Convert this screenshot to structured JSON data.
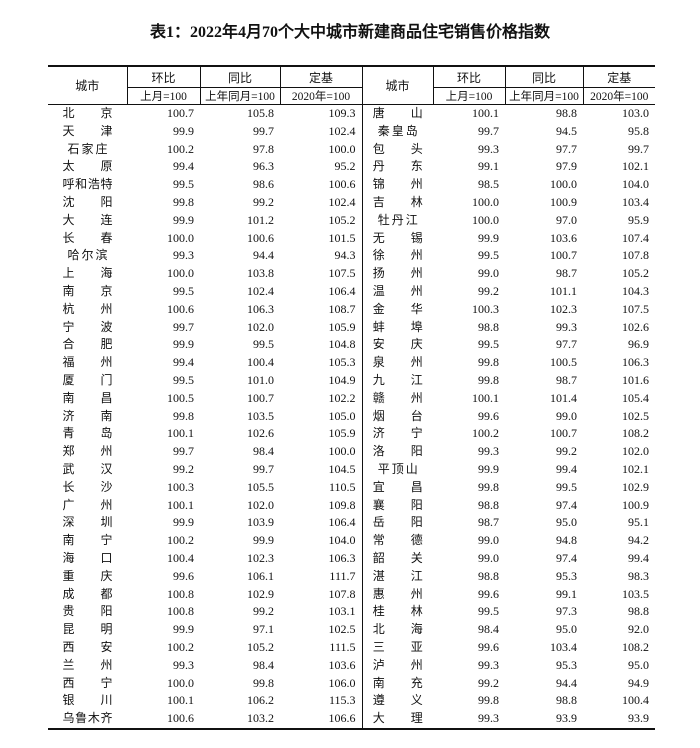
{
  "title": "表1：2022年4月70个大中城市新建商品住宅销售价格指数",
  "table": {
    "header": [
      "城市",
      "环比",
      "同比",
      "定基",
      "城市",
      "环比",
      "同比",
      "定基"
    ],
    "subheader": [
      "上月=100",
      "上年同月=100",
      "2020年=100",
      "上月=100",
      "上年同月=100",
      "2020年=100"
    ],
    "rows": [
      [
        "北京",
        "100.7",
        "105.8",
        "109.3",
        "唐山",
        "100.1",
        "98.8",
        "103.0"
      ],
      [
        "天津",
        "99.9",
        "99.7",
        "102.4",
        "秦皇岛",
        "99.7",
        "94.5",
        "95.8"
      ],
      [
        "石家庄",
        "100.2",
        "97.8",
        "100.0",
        "包头",
        "99.3",
        "97.7",
        "99.7"
      ],
      [
        "太原",
        "99.4",
        "96.3",
        "95.2",
        "丹东",
        "99.1",
        "97.9",
        "102.1"
      ],
      [
        "呼和浩特",
        "99.5",
        "98.6",
        "100.6",
        "锦州",
        "98.5",
        "100.0",
        "104.0"
      ],
      [
        "沈阳",
        "99.8",
        "99.2",
        "102.4",
        "吉林",
        "100.0",
        "100.9",
        "103.4"
      ],
      [
        "大连",
        "99.9",
        "101.2",
        "105.2",
        "牡丹江",
        "100.0",
        "97.0",
        "95.9"
      ],
      [
        "长春",
        "100.0",
        "100.6",
        "101.5",
        "无锡",
        "99.9",
        "103.6",
        "107.4"
      ],
      [
        "哈尔滨",
        "99.3",
        "94.4",
        "94.3",
        "徐州",
        "99.5",
        "100.7",
        "107.8"
      ],
      [
        "上海",
        "100.0",
        "103.8",
        "107.5",
        "扬州",
        "99.0",
        "98.7",
        "105.2"
      ],
      [
        "南京",
        "99.5",
        "102.4",
        "106.4",
        "温州",
        "99.2",
        "101.1",
        "104.3"
      ],
      [
        "杭州",
        "100.6",
        "106.3",
        "108.7",
        "金华",
        "100.3",
        "102.3",
        "107.5"
      ],
      [
        "宁波",
        "99.7",
        "102.0",
        "105.9",
        "蚌埠",
        "98.8",
        "99.3",
        "102.6"
      ],
      [
        "合肥",
        "99.9",
        "99.5",
        "104.8",
        "安庆",
        "99.5",
        "97.7",
        "96.9"
      ],
      [
        "福州",
        "99.4",
        "100.4",
        "105.3",
        "泉州",
        "99.8",
        "100.5",
        "106.3"
      ],
      [
        "厦门",
        "99.5",
        "101.0",
        "104.9",
        "九江",
        "99.8",
        "98.7",
        "101.6"
      ],
      [
        "南昌",
        "100.5",
        "100.7",
        "102.2",
        "赣州",
        "100.1",
        "101.4",
        "105.4"
      ],
      [
        "济南",
        "99.8",
        "103.5",
        "105.0",
        "烟台",
        "99.6",
        "99.0",
        "102.5"
      ],
      [
        "青岛",
        "100.1",
        "102.6",
        "105.9",
        "济宁",
        "100.2",
        "100.7",
        "108.2"
      ],
      [
        "郑州",
        "99.7",
        "98.4",
        "100.0",
        "洛阳",
        "99.3",
        "99.2",
        "102.0"
      ],
      [
        "武汉",
        "99.2",
        "99.7",
        "104.5",
        "平顶山",
        "99.9",
        "99.4",
        "102.1"
      ],
      [
        "长沙",
        "100.3",
        "105.5",
        "110.5",
        "宜昌",
        "99.8",
        "99.5",
        "102.9"
      ],
      [
        "广州",
        "100.1",
        "102.0",
        "109.8",
        "襄阳",
        "98.8",
        "97.4",
        "100.9"
      ],
      [
        "深圳",
        "99.9",
        "103.9",
        "106.4",
        "岳阳",
        "98.7",
        "95.0",
        "95.1"
      ],
      [
        "南宁",
        "100.2",
        "99.9",
        "104.0",
        "常德",
        "99.0",
        "94.8",
        "94.2"
      ],
      [
        "海口",
        "100.4",
        "102.3",
        "106.3",
        "韶关",
        "99.0",
        "97.4",
        "99.4"
      ],
      [
        "重庆",
        "99.6",
        "106.1",
        "111.7",
        "湛江",
        "98.8",
        "95.3",
        "98.3"
      ],
      [
        "成都",
        "100.8",
        "102.9",
        "107.8",
        "惠州",
        "99.6",
        "99.1",
        "103.5"
      ],
      [
        "贵阳",
        "100.8",
        "99.2",
        "103.1",
        "桂林",
        "99.5",
        "97.3",
        "98.8"
      ],
      [
        "昆明",
        "99.9",
        "97.1",
        "102.5",
        "北海",
        "98.4",
        "95.0",
        "92.0"
      ],
      [
        "西安",
        "100.2",
        "105.2",
        "111.5",
        "三亚",
        "99.6",
        "103.4",
        "108.2"
      ],
      [
        "兰州",
        "99.3",
        "98.4",
        "103.6",
        "泸州",
        "99.3",
        "95.3",
        "95.0"
      ],
      [
        "西宁",
        "100.0",
        "99.8",
        "106.0",
        "南充",
        "99.2",
        "94.4",
        "94.9"
      ],
      [
        "银川",
        "100.1",
        "106.2",
        "115.3",
        "遵义",
        "99.8",
        "98.8",
        "100.4"
      ],
      [
        "乌鲁木齐",
        "100.6",
        "103.2",
        "106.6",
        "大理",
        "99.3",
        "93.9",
        "93.9"
      ]
    ]
  }
}
